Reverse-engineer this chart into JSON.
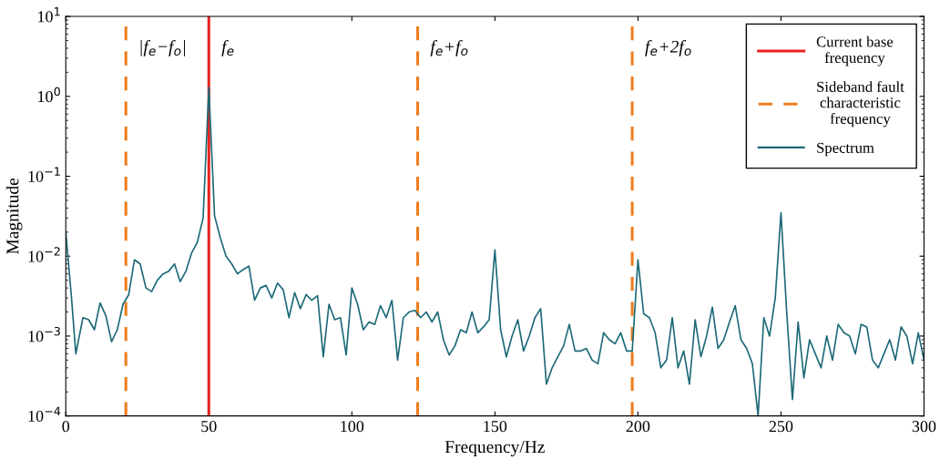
{
  "chart_data": {
    "type": "line",
    "xlabel": "Frequency/Hz",
    "ylabel": "Magnitude",
    "log": "y",
    "xlim": [
      0,
      300
    ],
    "xticks": [
      0,
      50,
      100,
      150,
      200,
      250,
      300
    ],
    "ylim": [
      0.0001,
      10
    ],
    "yticks": [
      {
        "value": 0.0001,
        "label": "10$^{−4}$"
      },
      {
        "value": 0.001,
        "label": "10$^{−3}$"
      },
      {
        "value": 0.01,
        "label": "10$^{−2}$"
      },
      {
        "value": 0.1,
        "label": "10$^{−1}$"
      },
      {
        "value": 1,
        "label": "10$^{0}$"
      },
      {
        "value": 10,
        "label": "10$^{1}$"
      }
    ],
    "grid": false,
    "legend": "top right",
    "series": [
      {
        "name": "Current base frequency",
        "color": "#e8231f",
        "line_style": "solid",
        "x": [
          50,
          50
        ],
        "values": [
          0.0001,
          10
        ]
      },
      {
        "name": "Sideband fault characteristic frequency",
        "color": "#ee7d1e",
        "line_style": "dashed",
        "x": [
          21,
          21,
          null,
          123,
          123,
          null,
          198,
          198
        ],
        "values": [
          0.0001,
          10,
          null,
          0.0001,
          10,
          null,
          0.0001,
          10
        ]
      },
      {
        "name": "Spectrum",
        "color": "#1d6a78",
        "line_style": "solid",
        "x": [
          0,
          2,
          3.5,
          6,
          8,
          10,
          12,
          14,
          16,
          18,
          20,
          22,
          24,
          26,
          28,
          30,
          32,
          34,
          36,
          38,
          40,
          42,
          44,
          46,
          48,
          50,
          52,
          54,
          56,
          58,
          60,
          62,
          64,
          66,
          68,
          70,
          72,
          74,
          76,
          78,
          80,
          82,
          84,
          86,
          88,
          90,
          92,
          94,
          96,
          98,
          100,
          102,
          104,
          106,
          108,
          110,
          112,
          114,
          116,
          118,
          120,
          122,
          124,
          126,
          128,
          130,
          132,
          134,
          136,
          138,
          140,
          142,
          144,
          146,
          148,
          150,
          152,
          154,
          156,
          158,
          160,
          162,
          164,
          166,
          168,
          170,
          172,
          174,
          176,
          178,
          180,
          182,
          184,
          186,
          188,
          190,
          192,
          194,
          196,
          198,
          200,
          202,
          204,
          206,
          208,
          210,
          212,
          214,
          216,
          218,
          220,
          222,
          224,
          226,
          228,
          230,
          232,
          234,
          236,
          238,
          240,
          242,
          244,
          246,
          248,
          250,
          252,
          254,
          256,
          258,
          260,
          262,
          264,
          266,
          268,
          270,
          272,
          274,
          276,
          278,
          280,
          282,
          284,
          286,
          288,
          290,
          292,
          294,
          296,
          298,
          300
        ],
        "values": [
          0.02,
          0.003,
          0.0006,
          0.0017,
          0.0016,
          0.0012,
          0.0026,
          0.0018,
          0.00085,
          0.0012,
          0.0025,
          0.0033,
          0.009,
          0.008,
          0.004,
          0.0036,
          0.005,
          0.006,
          0.0065,
          0.008,
          0.0048,
          0.0065,
          0.011,
          0.015,
          0.03,
          1.3,
          0.032,
          0.017,
          0.01,
          0.008,
          0.006,
          0.0068,
          0.0075,
          0.0028,
          0.004,
          0.0043,
          0.003,
          0.0046,
          0.0038,
          0.0017,
          0.0035,
          0.0022,
          0.0033,
          0.0028,
          0.0032,
          0.00055,
          0.0025,
          0.0016,
          0.0017,
          0.00058,
          0.004,
          0.0025,
          0.0012,
          0.0015,
          0.0014,
          0.0024,
          0.0017,
          0.0028,
          0.0005,
          0.0017,
          0.002,
          0.0021,
          0.0017,
          0.002,
          0.0015,
          0.002,
          0.0009,
          0.00058,
          0.00075,
          0.0012,
          0.0011,
          0.002,
          0.0011,
          0.0013,
          0.0016,
          0.012,
          0.0012,
          0.00055,
          0.001,
          0.0016,
          0.00065,
          0.001,
          0.0017,
          0.0022,
          0.00025,
          0.0004,
          0.00055,
          0.00075,
          0.0014,
          0.00065,
          0.00065,
          0.0007,
          0.0005,
          0.00045,
          0.0011,
          0.0009,
          0.0008,
          0.0011,
          0.00065,
          0.00065,
          0.009,
          0.0019,
          0.0017,
          0.0011,
          0.0004,
          0.0005,
          0.0017,
          0.0004,
          0.00065,
          0.00025,
          0.0016,
          0.00055,
          0.001,
          0.0023,
          0.0007,
          0.0009,
          0.0015,
          0.0024,
          0.0009,
          0.0007,
          0.00045,
          0.0001,
          0.0017,
          0.001,
          0.003,
          0.035,
          0.002,
          0.00016,
          0.0015,
          0.0003,
          0.0009,
          0.0006,
          0.0004,
          0.001,
          0.0005,
          0.0014,
          0.0011,
          0.001,
          0.0006,
          0.0014,
          0.0013,
          0.0005,
          0.0004,
          0.0006,
          0.0009,
          0.0005,
          0.0013,
          0.001,
          0.00045,
          0.0011,
          0.0005
        ]
      }
    ],
    "annotations": [
      {
        "text": "|f$_{e}$−f$_{o}$|",
        "x": 21,
        "y": 4
      },
      {
        "text": "f$_{e}$",
        "x": 50,
        "y": 4
      },
      {
        "text": "f$_{e}$+f$_{o}$",
        "x": 123,
        "y": 4
      },
      {
        "text": "f$_{e}$+2f$_{o}$",
        "x": 198,
        "y": 4
      }
    ]
  }
}
